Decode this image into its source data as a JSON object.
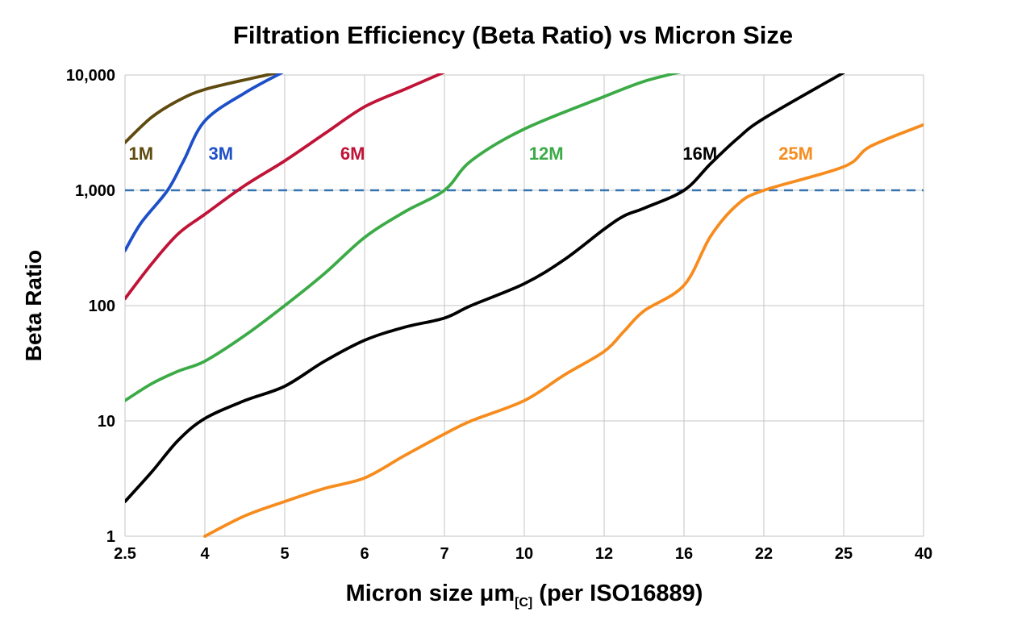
{
  "chart_data": {
    "type": "line",
    "title": "Filtration Efficiency (Beta Ratio) vs Micron Size",
    "ylabel": "Beta Ratio",
    "xlabel_parts": {
      "pre": "Micron size μm",
      "sub": "[C]",
      "post": " (per ISO16889)"
    },
    "x_ticks": [
      2.5,
      4,
      5,
      6,
      7,
      10,
      12,
      16,
      22,
      25,
      40
    ],
    "x_tick_labels": [
      "2.5",
      "4",
      "5",
      "6",
      "7",
      "10",
      "12",
      "16",
      "22",
      "25",
      "40"
    ],
    "y_ticks": [
      1,
      10,
      100,
      1000,
      10000
    ],
    "y_tick_labels": [
      "1",
      "10",
      "100",
      "1,000",
      "10,000"
    ],
    "ylim": [
      1,
      10000
    ],
    "y_scale": "log",
    "x_scale": "ordinal-equal-spacing",
    "grid": true,
    "grid_color": "#c6c6c6",
    "reference_line": {
      "value": 1000,
      "style": "dashed",
      "color": "#3572b0"
    },
    "series": [
      {
        "name": "1M",
        "color": "#5f4b0f",
        "label_pos": {
          "micron": 2.8,
          "beta": 2100
        },
        "points": [
          [
            2.5,
            2600
          ],
          [
            3,
            4300
          ],
          [
            3.5,
            6000
          ],
          [
            4,
            7500
          ],
          [
            4.6,
            9400
          ],
          [
            5,
            10800
          ]
        ]
      },
      {
        "name": "3M",
        "color": "#1d50c8",
        "label_pos": {
          "micron": 4.2,
          "beta": 2100
        },
        "points": [
          [
            2.5,
            300
          ],
          [
            2.8,
            520
          ],
          [
            3.3,
            1000
          ],
          [
            3.6,
            1800
          ],
          [
            4,
            4000
          ],
          [
            4.5,
            7000
          ],
          [
            5,
            10800
          ]
        ]
      },
      {
        "name": "6M",
        "color": "#c01337",
        "label_pos": {
          "micron": 5.85,
          "beta": 2100
        },
        "points": [
          [
            2.5,
            115
          ],
          [
            3,
            230
          ],
          [
            3.5,
            420
          ],
          [
            4,
            620
          ],
          [
            4.5,
            1100
          ],
          [
            5,
            1800
          ],
          [
            5.5,
            3100
          ],
          [
            6,
            5300
          ],
          [
            6.5,
            7500
          ],
          [
            7,
            10600
          ]
        ]
      },
      {
        "name": "12M",
        "color": "#3cab47",
        "label_pos": {
          "micron": 10.55,
          "beta": 2100
        },
        "points": [
          [
            2.5,
            15
          ],
          [
            3,
            21
          ],
          [
            3.5,
            27
          ],
          [
            4,
            33
          ],
          [
            4.5,
            55
          ],
          [
            5,
            100
          ],
          [
            5.5,
            190
          ],
          [
            6,
            390
          ],
          [
            6.5,
            650
          ],
          [
            7,
            1000
          ],
          [
            8,
            1800
          ],
          [
            10,
            3400
          ],
          [
            12,
            6500
          ],
          [
            14,
            8800
          ],
          [
            16,
            10800
          ]
        ]
      },
      {
        "name": "16M",
        "color": "#000000",
        "label_pos": {
          "micron": 17.2,
          "beta": 2100
        },
        "points": [
          [
            2.5,
            2
          ],
          [
            3,
            3.6
          ],
          [
            3.5,
            6.8
          ],
          [
            4,
            10.5
          ],
          [
            4.5,
            15
          ],
          [
            5,
            20
          ],
          [
            5.5,
            33
          ],
          [
            6,
            50
          ],
          [
            6.5,
            65
          ],
          [
            7,
            78
          ],
          [
            8,
            100
          ],
          [
            10,
            155
          ],
          [
            11,
            250
          ],
          [
            12,
            460
          ],
          [
            13,
            600
          ],
          [
            14,
            700
          ],
          [
            16,
            1000
          ],
          [
            18,
            1700
          ],
          [
            20,
            2800
          ],
          [
            22,
            4200
          ],
          [
            25,
            10500
          ]
        ]
      },
      {
        "name": "25M",
        "color": "#f78c1e",
        "label_pos": {
          "micron": 23.2,
          "beta": 2100
        },
        "points": [
          [
            4,
            1
          ],
          [
            4.5,
            1.5
          ],
          [
            5,
            2
          ],
          [
            5.5,
            2.6
          ],
          [
            6,
            3.2
          ],
          [
            6.5,
            5
          ],
          [
            7,
            7.7
          ],
          [
            8,
            10
          ],
          [
            10,
            15
          ],
          [
            11,
            25
          ],
          [
            12,
            40
          ],
          [
            13,
            60
          ],
          [
            14,
            90
          ],
          [
            16,
            150
          ],
          [
            18,
            400
          ],
          [
            20,
            750
          ],
          [
            22,
            1000
          ],
          [
            25,
            1600
          ],
          [
            30,
            2400
          ],
          [
            40,
            3700
          ]
        ]
      }
    ]
  }
}
